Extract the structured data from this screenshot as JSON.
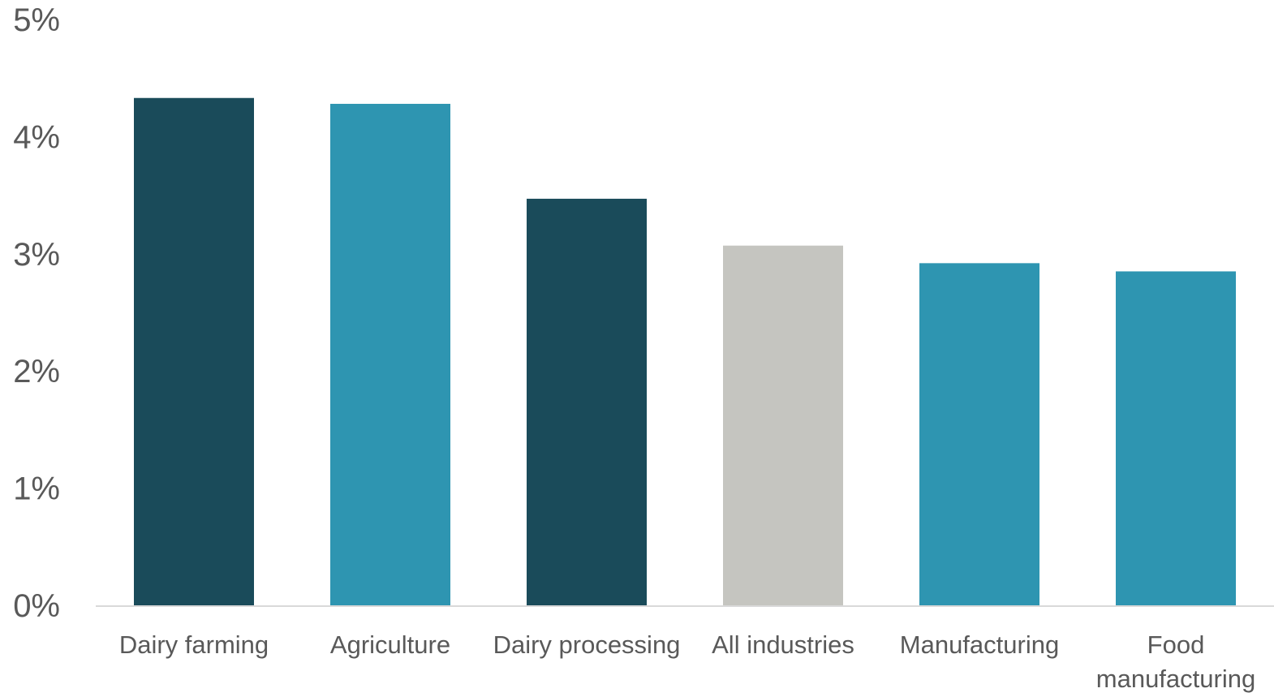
{
  "chart_data": {
    "type": "bar",
    "title": "",
    "xlabel": "",
    "ylabel": "",
    "categories": [
      [
        "Dairy farming"
      ],
      [
        "Agriculture"
      ],
      [
        "Dairy processing"
      ],
      [
        "All industries"
      ],
      [
        "Manufacturing"
      ],
      [
        "Food",
        "manufacturing"
      ]
    ],
    "values": [
      4.33,
      4.28,
      3.47,
      3.07,
      2.92,
      2.85
    ],
    "colors": [
      "#1a4b5a",
      "#2e95b1",
      "#1a4b5a",
      "#c5c5c0",
      "#2e95b1",
      "#2e95b1"
    ],
    "ylim": [
      0,
      5
    ],
    "yticks": [
      "0%",
      "1%",
      "2%",
      "3%",
      "4%",
      "5%"
    ],
    "grid": false,
    "axis_color": "#d9d9d9"
  }
}
